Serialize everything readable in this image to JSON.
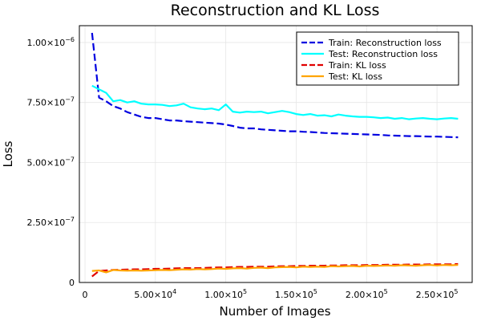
{
  "chart_data": {
    "type": "line",
    "title": "Reconstruction and KL Loss",
    "xlabel": "Number of Images",
    "ylabel": "Loss",
    "xlim": [
      0,
      275000
    ],
    "ylim": [
      0,
      1.07e-06
    ],
    "grid": true,
    "legend_position": "top-right",
    "x_ticks": [
      {
        "value": 0,
        "label": "0",
        "exp": ""
      },
      {
        "value": 50000,
        "label": "5.00×10",
        "exp": "4"
      },
      {
        "value": 100000,
        "label": "1.00×10",
        "exp": "5"
      },
      {
        "value": 150000,
        "label": "1.50×10",
        "exp": "5"
      },
      {
        "value": 200000,
        "label": "2.00×10",
        "exp": "5"
      },
      {
        "value": 250000,
        "label": "2.50×10",
        "exp": "5"
      }
    ],
    "y_ticks": [
      {
        "value": 0,
        "label": "0",
        "exp": ""
      },
      {
        "value": 2.5e-07,
        "label": "2.50×10",
        "exp": "−7"
      },
      {
        "value": 5e-07,
        "label": "5.00×10",
        "exp": "−7"
      },
      {
        "value": 7.5e-07,
        "label": "7.50×10",
        "exp": "−7"
      },
      {
        "value": 1e-06,
        "label": "1.00×10",
        "exp": "−6"
      }
    ],
    "x": [
      5000,
      10000,
      15000,
      20000,
      25000,
      30000,
      35000,
      40000,
      45000,
      50000,
      55000,
      60000,
      65000,
      70000,
      75000,
      80000,
      85000,
      90000,
      95000,
      100000,
      105000,
      110000,
      115000,
      120000,
      125000,
      130000,
      135000,
      140000,
      145000,
      150000,
      155000,
      160000,
      165000,
      170000,
      175000,
      180000,
      185000,
      190000,
      195000,
      200000,
      205000,
      210000,
      215000,
      220000,
      225000,
      230000,
      235000,
      240000,
      245000,
      250000,
      255000,
      260000,
      265000
    ],
    "series": [
      {
        "name": "Train: Reconstruction loss",
        "color": "#0000e0",
        "dashed": true,
        "values": [
          1.04e-06,
          7.7e-07,
          7.55e-07,
          7.35e-07,
          7.25e-07,
          7.1e-07,
          7e-07,
          6.9e-07,
          6.85e-07,
          6.85e-07,
          6.8e-07,
          6.75e-07,
          6.75e-07,
          6.72e-07,
          6.7e-07,
          6.68e-07,
          6.66e-07,
          6.64e-07,
          6.62e-07,
          6.58e-07,
          6.52e-07,
          6.45e-07,
          6.42e-07,
          6.42e-07,
          6.38e-07,
          6.36e-07,
          6.34e-07,
          6.32e-07,
          6.3e-07,
          6.3e-07,
          6.28e-07,
          6.27e-07,
          6.25e-07,
          6.23e-07,
          6.22e-07,
          6.21e-07,
          6.2e-07,
          6.19e-07,
          6.18e-07,
          6.17e-07,
          6.16e-07,
          6.15e-07,
          6.13e-07,
          6.12e-07,
          6.11e-07,
          6.1e-07,
          6.1e-07,
          6.09e-07,
          6.08e-07,
          6.08e-07,
          6.07e-07,
          6.06e-07,
          6.05e-07
        ]
      },
      {
        "name": "Test: Reconstruction loss",
        "color": "#00ffff",
        "dashed": false,
        "values": [
          8.2e-07,
          8.05e-07,
          7.9e-07,
          7.55e-07,
          7.6e-07,
          7.5e-07,
          7.55e-07,
          7.45e-07,
          7.42e-07,
          7.42e-07,
          7.4e-07,
          7.35e-07,
          7.38e-07,
          7.45e-07,
          7.3e-07,
          7.25e-07,
          7.22e-07,
          7.25e-07,
          7.18e-07,
          7.42e-07,
          7.12e-07,
          7.08e-07,
          7.12e-07,
          7.1e-07,
          7.12e-07,
          7.05e-07,
          7.1e-07,
          7.15e-07,
          7.1e-07,
          7.02e-07,
          6.98e-07,
          7.02e-07,
          6.95e-07,
          6.97e-07,
          6.92e-07,
          7e-07,
          6.95e-07,
          6.92e-07,
          6.9e-07,
          6.9e-07,
          6.88e-07,
          6.85e-07,
          6.87e-07,
          6.82e-07,
          6.85e-07,
          6.8e-07,
          6.83e-07,
          6.85e-07,
          6.82e-07,
          6.8e-07,
          6.83e-07,
          6.85e-07,
          6.82e-07
        ]
      },
      {
        "name": "Train: KL loss",
        "color": "#e00000",
        "dashed": true,
        "values": [
          2.5e-08,
          4.8e-08,
          5e-08,
          5.2e-08,
          5.3e-08,
          5.4e-08,
          5.5e-08,
          5.5e-08,
          5.6e-08,
          5.7e-08,
          5.7e-08,
          5.8e-08,
          5.9e-08,
          6e-08,
          6e-08,
          6e-08,
          6.1e-08,
          6.2e-08,
          6.3e-08,
          6.3e-08,
          6.4e-08,
          6.5e-08,
          6.5e-08,
          6.6e-08,
          6.6e-08,
          6.6e-08,
          6.7e-08,
          6.8e-08,
          6.8e-08,
          6.9e-08,
          6.9e-08,
          7e-08,
          7e-08,
          7e-08,
          7.1e-08,
          7.1e-08,
          7.2e-08,
          7.2e-08,
          7.2e-08,
          7.3e-08,
          7.3e-08,
          7.3e-08,
          7.4e-08,
          7.4e-08,
          7.4e-08,
          7.5e-08,
          7.5e-08,
          7.5e-08,
          7.6e-08,
          7.6e-08,
          7.6e-08,
          7.6e-08,
          7.7e-08
        ]
      },
      {
        "name": "Test: KL loss",
        "color": "#ffa500",
        "dashed": false,
        "values": [
          4.8e-08,
          5e-08,
          4.2e-08,
          5.2e-08,
          5e-08,
          4.9e-08,
          5e-08,
          4.9e-08,
          5e-08,
          5.1e-08,
          5.2e-08,
          5.1e-08,
          5.3e-08,
          5.5e-08,
          5.4e-08,
          5.6e-08,
          5.5e-08,
          5.6e-08,
          5.8e-08,
          5.7e-08,
          5.9e-08,
          6e-08,
          5.8e-08,
          6.1e-08,
          6.2e-08,
          6e-08,
          6.3e-08,
          6.4e-08,
          6.5e-08,
          6.3e-08,
          6.6e-08,
          6.5e-08,
          6.6e-08,
          6.5e-08,
          6.8e-08,
          6.7e-08,
          6.8e-08,
          6.9e-08,
          6.7e-08,
          7e-08,
          6.9e-08,
          7e-08,
          7.1e-08,
          7e-08,
          7.2e-08,
          7.1e-08,
          7e-08,
          7.2e-08,
          7.3e-08,
          7.1e-08,
          7.3e-08,
          7.2e-08,
          7.3e-08
        ]
      }
    ]
  }
}
